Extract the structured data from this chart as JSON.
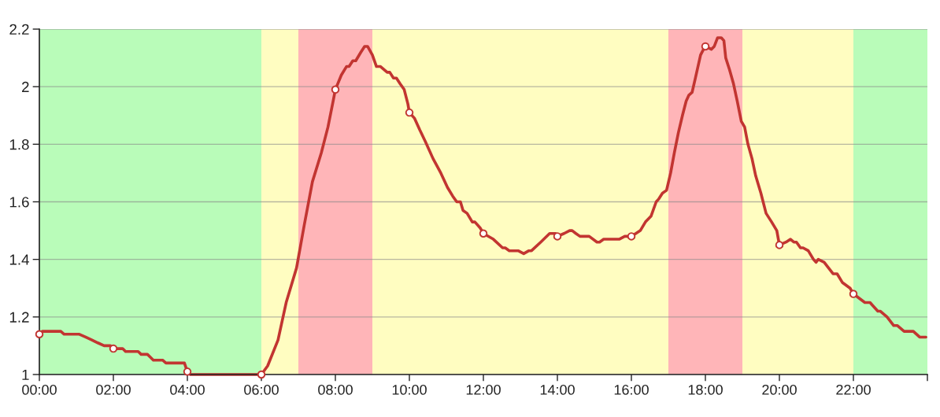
{
  "chart_data": {
    "type": "line",
    "xlim": [
      0,
      24
    ],
    "xticks": [
      {
        "value": 0,
        "label": "00:00"
      },
      {
        "value": 2,
        "label": "02:00"
      },
      {
        "value": 4,
        "label": "04:00"
      },
      {
        "value": 6,
        "label": "06:00"
      },
      {
        "value": 8,
        "label": "08:00"
      },
      {
        "value": 10,
        "label": "10:00"
      },
      {
        "value": 12,
        "label": "12:00"
      },
      {
        "value": 14,
        "label": "14:00"
      },
      {
        "value": 16,
        "label": "16:00"
      },
      {
        "value": 18,
        "label": "18:00"
      },
      {
        "value": 20,
        "label": "20:00"
      },
      {
        "value": 22,
        "label": "22:00"
      },
      {
        "value": 24,
        "label": null
      }
    ],
    "ylim": [
      1,
      2.2
    ],
    "yticks": [
      1,
      1.2,
      1.4,
      1.6,
      1.8,
      2,
      2.2
    ],
    "grid": "y",
    "line_style": "solid",
    "bands": [
      {
        "axis": "x",
        "from": 0,
        "to": 6,
        "color": "#b9fcb9"
      },
      {
        "axis": "x",
        "from": 6,
        "to": 7,
        "color": "#fffdc1"
      },
      {
        "axis": "x",
        "from": 7,
        "to": 9,
        "color": "#ffb5b8"
      },
      {
        "axis": "x",
        "from": 9,
        "to": 17,
        "color": "#fffdc1"
      },
      {
        "axis": "x",
        "from": 17,
        "to": 19,
        "color": "#ffb5b8"
      },
      {
        "axis": "x",
        "from": 19,
        "to": 22,
        "color": "#fffdc1"
      },
      {
        "axis": "x",
        "from": 22,
        "to": 24,
        "color": "#b9fcb9"
      }
    ],
    "series": [
      {
        "color": "#c23531",
        "marker": "none",
        "x": [
          0,
          0.08,
          0.58,
          0.67,
          1.08,
          1.25,
          1.42,
          1.58,
          1.75,
          1.92,
          2.0,
          2.25,
          2.33,
          2.67,
          2.75,
          2.92,
          3.0,
          3.08,
          3.33,
          3.42,
          3.92,
          4.0,
          4.08,
          6.0,
          6.17,
          6.45,
          6.67,
          6.95,
          7.16,
          7.38,
          7.62,
          7.8,
          7.94,
          8.0,
          8.16,
          8.3,
          8.37,
          8.47,
          8.55,
          8.69,
          8.79,
          8.87,
          9.0,
          9.11,
          9.22,
          9.4,
          9.47,
          9.57,
          9.65,
          9.75,
          9.86,
          9.96,
          10.0,
          10.14,
          10.28,
          10.43,
          10.64,
          10.85,
          11.03,
          11.17,
          11.28,
          11.38,
          11.45,
          11.56,
          11.7,
          11.77,
          11.91,
          12.0,
          12.27,
          12.52,
          12.59,
          12.7,
          12.94,
          13.09,
          13.23,
          13.3,
          13.55,
          13.79,
          13.95,
          14.0,
          14.18,
          14.33,
          14.4,
          14.5,
          14.61,
          14.86,
          15.07,
          15.14,
          15.25,
          15.67,
          15.82,
          16.0,
          16.24,
          16.38,
          16.53,
          16.67,
          16.74,
          16.84,
          16.95,
          17.06,
          17.16,
          17.27,
          17.38,
          17.48,
          17.55,
          17.64,
          17.73,
          17.87,
          17.95,
          18.0,
          18.16,
          18.24,
          18.33,
          18.43,
          18.5,
          18.55,
          18.65,
          18.76,
          18.86,
          18.97,
          19.06,
          19.15,
          19.26,
          19.36,
          19.5,
          19.64,
          19.79,
          19.93,
          20.0,
          20.18,
          20.3,
          20.39,
          20.46,
          20.57,
          20.64,
          20.78,
          20.92,
          20.99,
          21.05,
          21.21,
          21.45,
          21.56,
          21.7,
          21.91,
          22.0,
          22.31,
          22.45,
          22.52,
          22.66,
          22.73,
          22.91,
          23.09,
          23.19,
          23.37,
          23.62,
          23.79,
          23.96
        ],
        "values": [
          1.14,
          1.15,
          1.15,
          1.14,
          1.14,
          1.13,
          1.12,
          1.11,
          1.1,
          1.1,
          1.09,
          1.09,
          1.08,
          1.08,
          1.07,
          1.07,
          1.06,
          1.05,
          1.05,
          1.04,
          1.04,
          1.01,
          1.0,
          1.0,
          1.03,
          1.12,
          1.25,
          1.37,
          1.52,
          1.67,
          1.77,
          1.86,
          1.95,
          1.99,
          2.04,
          2.07,
          2.07,
          2.09,
          2.09,
          2.12,
          2.14,
          2.14,
          2.11,
          2.07,
          2.07,
          2.05,
          2.05,
          2.03,
          2.03,
          2.01,
          1.99,
          1.94,
          1.91,
          1.89,
          1.85,
          1.81,
          1.75,
          1.7,
          1.65,
          1.62,
          1.6,
          1.6,
          1.57,
          1.56,
          1.53,
          1.53,
          1.51,
          1.49,
          1.47,
          1.44,
          1.44,
          1.43,
          1.43,
          1.42,
          1.43,
          1.43,
          1.46,
          1.49,
          1.49,
          1.48,
          1.49,
          1.5,
          1.5,
          1.49,
          1.48,
          1.48,
          1.46,
          1.46,
          1.47,
          1.47,
          1.48,
          1.48,
          1.5,
          1.53,
          1.55,
          1.6,
          1.61,
          1.63,
          1.64,
          1.7,
          1.77,
          1.84,
          1.9,
          1.95,
          1.97,
          1.98,
          2.03,
          2.11,
          2.13,
          2.14,
          2.13,
          2.14,
          2.17,
          2.17,
          2.16,
          2.1,
          2.06,
          2.01,
          1.95,
          1.88,
          1.86,
          1.8,
          1.75,
          1.69,
          1.63,
          1.56,
          1.53,
          1.5,
          1.45,
          1.46,
          1.47,
          1.46,
          1.46,
          1.44,
          1.44,
          1.43,
          1.4,
          1.39,
          1.4,
          1.39,
          1.35,
          1.35,
          1.32,
          1.3,
          1.28,
          1.25,
          1.25,
          1.24,
          1.22,
          1.22,
          1.2,
          1.17,
          1.17,
          1.15,
          1.15,
          1.13,
          1.13
        ]
      },
      {
        "type": "scatter",
        "color": "#c23531",
        "marker": "circle",
        "x": [
          0,
          2,
          4,
          6,
          8,
          10,
          12,
          14,
          16,
          18,
          20,
          22
        ],
        "values": [
          1.14,
          1.09,
          1.01,
          1.0,
          1.99,
          1.91,
          1.49,
          1.48,
          1.48,
          2.14,
          1.45,
          1.28
        ]
      }
    ]
  }
}
